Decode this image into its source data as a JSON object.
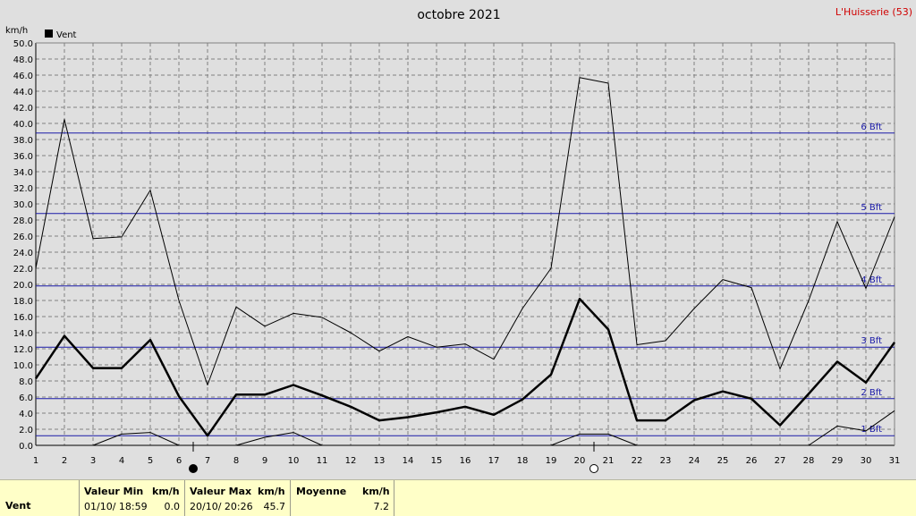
{
  "header": {
    "title": "octobre 2021",
    "location": "L'Huisserie (53)"
  },
  "chart_data": {
    "type": "line",
    "title": "octobre 2021",
    "ylabel": "km/h",
    "ylim": [
      0,
      50
    ],
    "yticks": [
      "0.0",
      "2.0",
      "4.0",
      "6.0",
      "8.0",
      "10.0",
      "12.0",
      "14.0",
      "16.0",
      "18.0",
      "20.0",
      "22.0",
      "24.0",
      "26.0",
      "28.0",
      "30.0",
      "32.0",
      "34.0",
      "36.0",
      "38.0",
      "40.0",
      "42.0",
      "44.0",
      "46.0",
      "48.0",
      "50.0"
    ],
    "x": [
      1,
      2,
      3,
      4,
      5,
      6,
      7,
      8,
      9,
      10,
      11,
      12,
      13,
      14,
      15,
      16,
      17,
      18,
      19,
      20,
      21,
      22,
      23,
      24,
      25,
      26,
      27,
      28,
      29,
      30,
      31
    ],
    "legend": {
      "label": "Vent",
      "position": "top-left"
    },
    "grid": true,
    "series": [
      {
        "name": "Vent",
        "role": "mean",
        "values": [
          8.3,
          13.6,
          9.6,
          9.6,
          13.1,
          6.1,
          1.2,
          6.3,
          6.3,
          7.5,
          6.2,
          4.8,
          3.1,
          3.5,
          4.1,
          4.8,
          3.8,
          5.7,
          8.8,
          18.2,
          14.4,
          3.1,
          3.1,
          5.6,
          6.7,
          5.8,
          2.5,
          6.4,
          10.4,
          7.8,
          12.8
        ]
      },
      {
        "role": "max",
        "values": [
          22.0,
          40.5,
          25.7,
          25.9,
          31.7,
          18.0,
          7.5,
          17.2,
          14.8,
          16.4,
          15.9,
          14.0,
          11.7,
          13.5,
          12.2,
          12.6,
          10.7,
          17.0,
          22.0,
          45.7,
          45.0,
          12.5,
          13.0,
          17.0,
          20.6,
          19.6,
          9.5,
          18.0,
          27.8,
          19.5,
          28.4
        ]
      },
      {
        "role": "min",
        "values": [
          null,
          null,
          0.0,
          1.4,
          1.6,
          0.0,
          null,
          0.0,
          1.0,
          1.6,
          0.0,
          null,
          null,
          null,
          null,
          null,
          null,
          null,
          0.0,
          1.4,
          1.4,
          0.0,
          null,
          null,
          null,
          null,
          null,
          0.0,
          2.4,
          1.8,
          4.3
        ]
      }
    ],
    "reference_lines": [
      {
        "label": "1 Bft",
        "value": 1.2,
        "color": "#1a1aa8"
      },
      {
        "label": "2 Bft",
        "value": 5.8,
        "color": "#1a1aa8"
      },
      {
        "label": "3 Bft",
        "value": 12.2,
        "color": "#1a1aa8"
      },
      {
        "label": "4 Bft",
        "value": 19.8,
        "color": "#1a1aa8"
      },
      {
        "label": "5 Bft",
        "value": 28.8,
        "color": "#1a1aa8"
      },
      {
        "label": "6 Bft",
        "value": 38.8,
        "color": "#1a1aa8"
      }
    ],
    "moon_phases": [
      {
        "day": 6.5,
        "phase": "new-moon"
      },
      {
        "day": 20.5,
        "phase": "full-moon"
      }
    ]
  },
  "summary": {
    "row_label": "Vent",
    "min_header": "Valeur Min",
    "min_unit": "km/h",
    "min_when": "01/10/  18:59",
    "min_value": "0.0",
    "max_header": "Valeur Max",
    "max_unit": "km/h",
    "max_when": "20/10/  20:26",
    "max_value": "45.7",
    "avg_header": "Moyenne",
    "avg_unit": "km/h",
    "avg_value": "7.2"
  },
  "colors": {
    "background": "#dfdfdf",
    "plot": "#dfdfdf",
    "grid": "#808080",
    "reference": "#1a1aa8",
    "summary_bg": "#ffffc8",
    "location": "#d00000"
  }
}
